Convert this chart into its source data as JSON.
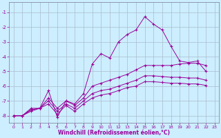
{
  "xlabel": "Windchill (Refroidissement éolien,°C)",
  "background_color": "#cceeff",
  "grid_color": "#aabbcc",
  "line_color": "#990099",
  "xlim": [
    -0.5,
    23.5
  ],
  "ylim": [
    -8.5,
    -0.3
  ],
  "yticks": [
    -8,
    -7,
    -6,
    -5,
    -4,
    -3,
    -2,
    -1
  ],
  "xticks": [
    0,
    1,
    2,
    3,
    4,
    5,
    6,
    7,
    8,
    9,
    10,
    11,
    12,
    13,
    14,
    15,
    16,
    17,
    18,
    19,
    20,
    21,
    22,
    23
  ],
  "curve1_y": [
    -8.0,
    -8.0,
    -7.5,
    -7.5,
    -6.3,
    -8.1,
    -7.0,
    -7.2,
    -6.5,
    -4.5,
    -3.8,
    -4.1,
    -3.0,
    -2.5,
    -2.2,
    -1.3,
    -1.8,
    -2.2,
    -3.3,
    -4.3,
    -4.4,
    -4.3,
    -5.0
  ],
  "curve2_y": [
    -8.0,
    -8.0,
    -7.6,
    -7.5,
    -6.8,
    -7.5,
    -7.0,
    -7.3,
    -6.8,
    -6.0,
    -5.8,
    -5.6,
    -5.4,
    -5.2,
    -4.9,
    -4.6,
    -4.6,
    -4.6,
    -4.6,
    -4.5,
    -4.45,
    -4.45,
    -4.6
  ],
  "curve3_y": [
    -8.0,
    -8.0,
    -7.6,
    -7.5,
    -7.0,
    -7.7,
    -7.2,
    -7.5,
    -7.0,
    -6.5,
    -6.3,
    -6.2,
    -6.0,
    -5.8,
    -5.6,
    -5.3,
    -5.3,
    -5.35,
    -5.4,
    -5.4,
    -5.45,
    -5.45,
    -5.6
  ],
  "curve4_y": [
    -8.0,
    -8.0,
    -7.7,
    -7.5,
    -7.2,
    -7.9,
    -7.3,
    -7.7,
    -7.2,
    -6.8,
    -6.6,
    -6.5,
    -6.3,
    -6.1,
    -6.0,
    -5.7,
    -5.7,
    -5.75,
    -5.8,
    -5.8,
    -5.85,
    -5.85,
    -5.95
  ]
}
